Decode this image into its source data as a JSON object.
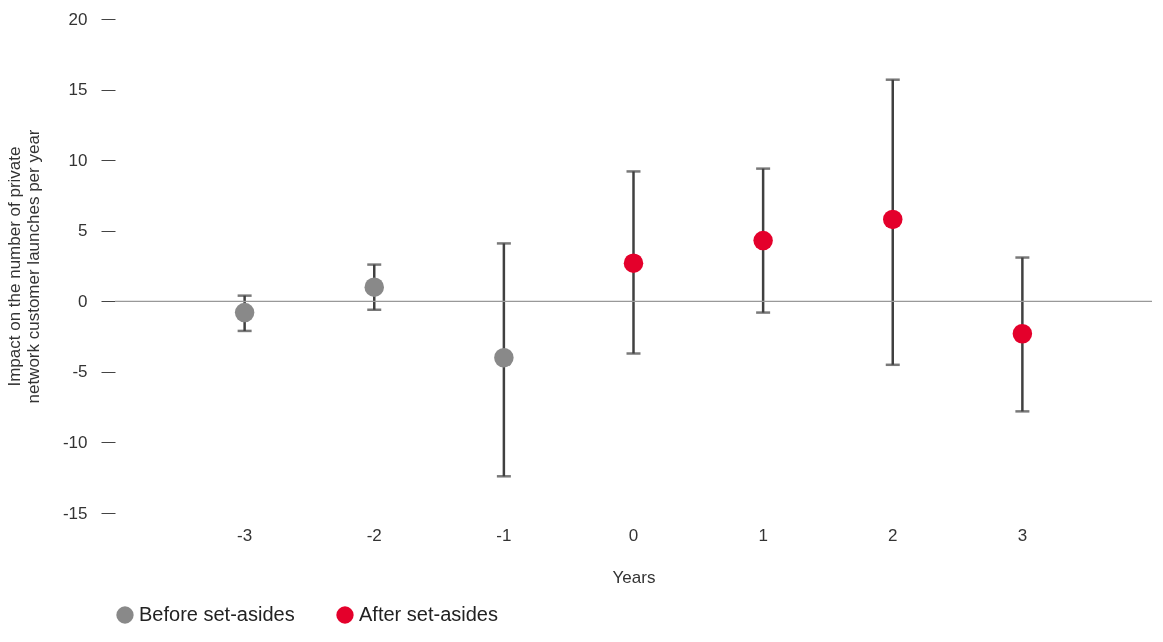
{
  "chart_data": {
    "type": "scatter",
    "xlabel": "Years",
    "ylabel": "Impact on the number of private network customer launches per year",
    "categories": [
      "-3",
      "-2",
      "-1",
      "0",
      "1",
      "2",
      "3"
    ],
    "series": [
      {
        "name": "Before set-asides",
        "color": "#898989",
        "values": [
          -0.8,
          1.0,
          -4.0,
          null,
          null,
          null,
          null
        ],
        "errors": [
          [
            -2.1,
            0.4
          ],
          [
            -0.6,
            2.6
          ],
          [
            -12.4,
            4.1
          ],
          null,
          null,
          null,
          null
        ]
      },
      {
        "name": "After set-asides",
        "color": "#e4002b",
        "values": [
          null,
          null,
          null,
          2.7,
          4.3,
          5.8,
          -2.3
        ],
        "errors": [
          null,
          null,
          null,
          [
            -3.7,
            9.2
          ],
          [
            -0.8,
            9.4
          ],
          [
            -4.5,
            15.7
          ],
          [
            -7.8,
            3.1
          ]
        ]
      }
    ],
    "ylim": [
      -15,
      20
    ],
    "yticks": [
      -15,
      -10,
      -5,
      0,
      5,
      10,
      15,
      20
    ],
    "ref_lines": [
      {
        "axis": "y",
        "value": 0,
        "color": "#999999"
      }
    ],
    "grid": false,
    "legend": "bottom",
    "marker": "circle"
  }
}
